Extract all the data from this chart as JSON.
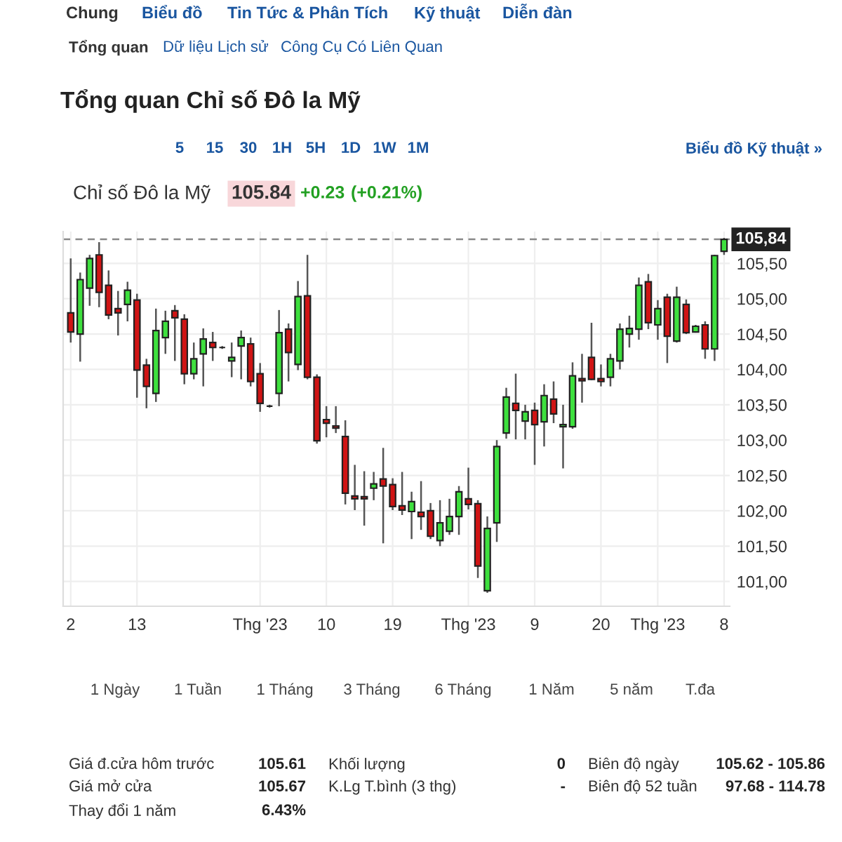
{
  "chart_data": {
    "type": "candlestick",
    "title": "Tổng quan Chỉ số Đô la Mỹ",
    "subtitle": "Chỉ số Đô la Mỹ",
    "categories": [
      "2",
      null,
      null,
      null,
      null,
      null,
      null,
      "13",
      null,
      null,
      null,
      null,
      null,
      null,
      null,
      null,
      null,
      null,
      null,
      null,
      "Thg '23",
      null,
      null,
      null,
      null,
      null,
      null,
      "10",
      null,
      null,
      null,
      null,
      null,
      null,
      "19",
      null,
      null,
      null,
      null,
      null,
      null,
      null,
      "Thg '23",
      null,
      null,
      null,
      null,
      null,
      null,
      "9",
      null,
      null,
      null,
      null,
      null,
      null,
      "20",
      null,
      null,
      null,
      null,
      null,
      "Thg '23",
      null,
      null,
      null,
      null,
      null,
      null,
      "8"
    ],
    "ohlc": [
      [
        104.8,
        105.57,
        104.38,
        104.53
      ],
      [
        104.5,
        105.37,
        104.11,
        105.27
      ],
      [
        105.15,
        105.62,
        104.9,
        105.57
      ],
      [
        105.62,
        105.8,
        104.88,
        105.09
      ],
      [
        105.19,
        105.4,
        104.71,
        104.77
      ],
      [
        104.86,
        105.11,
        104.48,
        104.8
      ],
      [
        104.92,
        105.24,
        104.68,
        105.12
      ],
      [
        104.98,
        105.07,
        103.6,
        103.99
      ],
      [
        104.06,
        104.15,
        103.45,
        103.76
      ],
      [
        103.66,
        104.86,
        103.54,
        104.55
      ],
      [
        104.45,
        104.83,
        104.22,
        104.68
      ],
      [
        104.83,
        104.91,
        104.12,
        104.73
      ],
      [
        104.71,
        104.78,
        103.79,
        103.94
      ],
      [
        103.94,
        104.38,
        103.86,
        104.15
      ],
      [
        104.22,
        104.58,
        103.76,
        104.43
      ],
      [
        104.38,
        104.53,
        104.12,
        104.31
      ],
      [
        104.31,
        104.33,
        104.29,
        104.31
      ],
      [
        104.12,
        104.38,
        103.89,
        104.17
      ],
      [
        104.33,
        104.55,
        103.86,
        104.45
      ],
      [
        104.36,
        104.45,
        103.76,
        103.83
      ],
      [
        103.94,
        104.09,
        103.4,
        103.52
      ],
      [
        103.48,
        103.5,
        103.46,
        103.48
      ],
      [
        103.66,
        104.84,
        103.48,
        104.52
      ],
      [
        104.57,
        104.65,
        103.83,
        104.24
      ],
      [
        104.07,
        105.25,
        103.99,
        105.03
      ],
      [
        105.04,
        105.62,
        103.86,
        103.89
      ],
      [
        103.89,
        103.93,
        102.95,
        102.99
      ],
      [
        103.29,
        103.48,
        103.04,
        103.24
      ],
      [
        103.2,
        103.48,
        103.1,
        103.17
      ],
      [
        103.05,
        103.28,
        102.09,
        102.25
      ],
      [
        102.21,
        102.65,
        102.01,
        102.17
      ],
      [
        102.2,
        102.56,
        101.79,
        102.17
      ],
      [
        102.32,
        102.55,
        102.15,
        102.38
      ],
      [
        102.45,
        102.89,
        101.54,
        102.35
      ],
      [
        102.37,
        102.46,
        102.01,
        102.06
      ],
      [
        102.07,
        102.55,
        101.94,
        102.01
      ],
      [
        101.99,
        102.27,
        101.6,
        102.13
      ],
      [
        101.98,
        102.42,
        101.73,
        101.92
      ],
      [
        102.0,
        102.11,
        101.6,
        101.64
      ],
      [
        101.58,
        102.15,
        101.5,
        101.83
      ],
      [
        101.71,
        102.17,
        101.66,
        101.92
      ],
      [
        101.92,
        102.35,
        101.66,
        102.27
      ],
      [
        102.17,
        102.61,
        102.02,
        102.09
      ],
      [
        102.1,
        102.15,
        101.05,
        101.22
      ],
      [
        100.87,
        101.92,
        100.84,
        101.75
      ],
      [
        101.83,
        103.0,
        101.56,
        102.91
      ],
      [
        103.1,
        103.74,
        103.02,
        103.61
      ],
      [
        103.52,
        103.94,
        103.01,
        103.42
      ],
      [
        103.27,
        103.5,
        103.01,
        103.4
      ],
      [
        103.42,
        103.53,
        102.65,
        103.22
      ],
      [
        103.26,
        103.79,
        102.91,
        103.63
      ],
      [
        103.58,
        103.83,
        103.24,
        103.37
      ],
      [
        103.19,
        103.5,
        102.6,
        103.22
      ],
      [
        103.19,
        104.1,
        103.16,
        103.91
      ],
      [
        103.87,
        104.22,
        103.53,
        103.84
      ],
      [
        104.17,
        104.66,
        103.85,
        103.86
      ],
      [
        103.87,
        104.07,
        103.76,
        103.83
      ],
      [
        103.89,
        104.22,
        103.76,
        104.15
      ],
      [
        104.12,
        104.65,
        104.0,
        104.57
      ],
      [
        104.5,
        104.76,
        104.31,
        104.58
      ],
      [
        104.57,
        105.3,
        104.42,
        105.19
      ],
      [
        105.24,
        105.35,
        104.57,
        104.66
      ],
      [
        104.63,
        104.98,
        104.42,
        104.86
      ],
      [
        105.02,
        105.07,
        104.09,
        104.47
      ],
      [
        104.4,
        105.17,
        104.38,
        105.02
      ],
      [
        104.92,
        104.99,
        104.5,
        104.52
      ],
      [
        104.53,
        104.63,
        104.52,
        104.61
      ],
      [
        104.63,
        104.68,
        104.15,
        104.29
      ],
      [
        104.29,
        105.62,
        104.12,
        105.61
      ],
      [
        105.67,
        105.86,
        105.62,
        105.84
      ]
    ],
    "ylim": [
      100.65,
      105.95
    ],
    "yticks": [
      {
        "value": 101.0,
        "label": "101,00"
      },
      {
        "value": 101.5,
        "label": "101,50"
      },
      {
        "value": 102.0,
        "label": "102,00"
      },
      {
        "value": 102.5,
        "label": "102,50"
      },
      {
        "value": 103.0,
        "label": "103,00"
      },
      {
        "value": 103.5,
        "label": "103,50"
      },
      {
        "value": 104.0,
        "label": "104,00"
      },
      {
        "value": 104.5,
        "label": "104,50"
      },
      {
        "value": 105.0,
        "label": "105,00"
      },
      {
        "value": 105.5,
        "label": "105,50"
      }
    ],
    "ref_lines": [
      {
        "axis": "y",
        "value": 105.84,
        "label": "105,84",
        "line_style": "dashed"
      }
    ],
    "grid": true,
    "annotations": [
      "Chung",
      "Biểu đồ",
      "Tin Tức & Phân Tích",
      "Kỹ thuật",
      "Diễn đàn",
      "Tổng quan",
      "Dữ liệu Lịch sử",
      "Công Cụ Có Liên Quan",
      "5",
      "15",
      "30",
      "1H",
      "5H",
      "1D",
      "1W",
      "1M",
      "Biểu đồ Kỹ thuật »",
      "105.84",
      "+0.23",
      "(+0.21%)",
      "1 Ngày",
      "1 Tuần",
      "1 Tháng",
      "3 Tháng",
      "6 Tháng",
      "1 Năm",
      "5 năm",
      "T.đa",
      "Giá đ.cửa hôm trước",
      "105.61",
      "Khối lượng",
      "0",
      "Biên độ ngày",
      "105.62 - 105.86",
      "Giá mở cửa",
      "105.67",
      "K.Lg T.bình (3 thg)",
      "-",
      "Biên độ 52 tuần",
      "97.68 - 114.78",
      "Thay đổi 1 năm",
      "6.43%"
    ]
  }
}
